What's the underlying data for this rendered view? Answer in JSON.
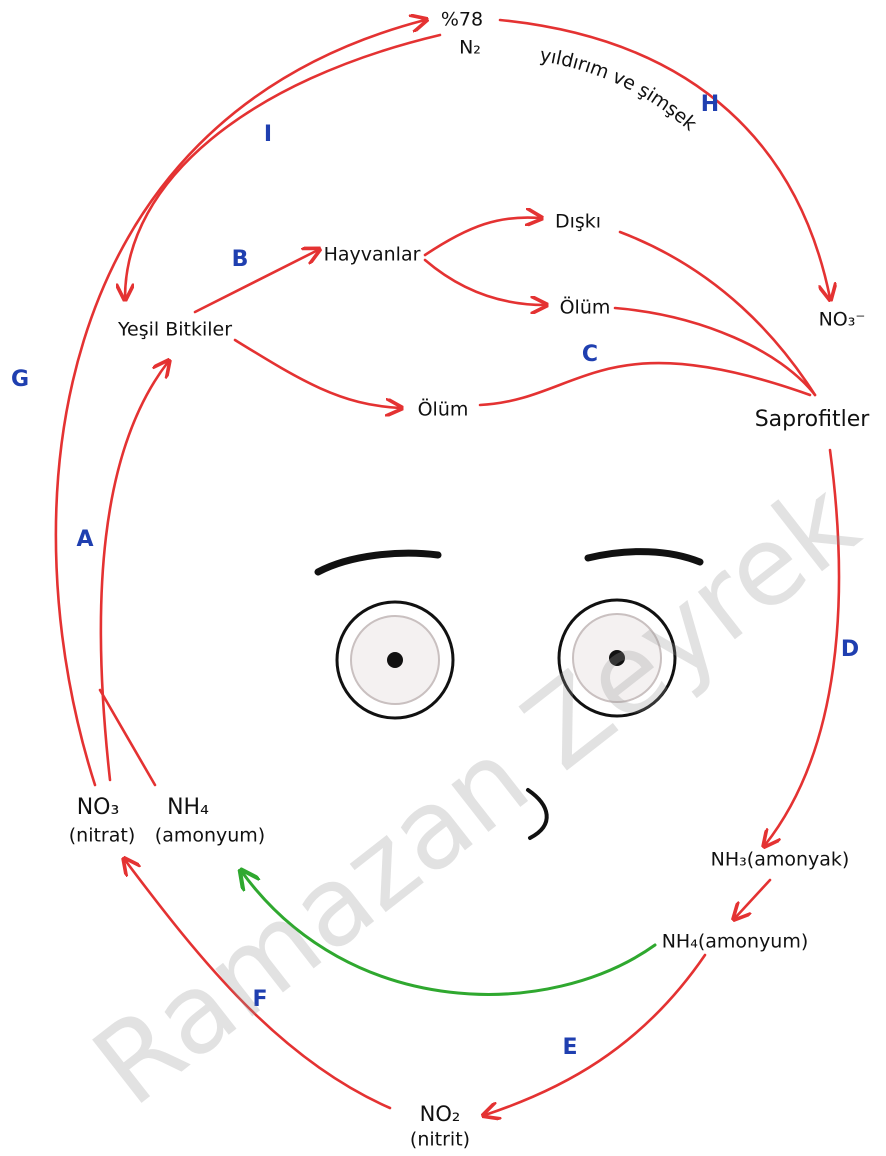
{
  "nodes": [
    {
      "label": "%78"
    },
    {
      "label": "N₂"
    },
    {
      "label": "Yeşil Bitkiler"
    },
    {
      "label": "Hayvanlar"
    },
    {
      "label": "Dışkı"
    },
    {
      "label": "Ölüm"
    },
    {
      "label": "Ölüm"
    },
    {
      "label": "NO₃⁻"
    },
    {
      "label": "Saprofitler"
    },
    {
      "label": "NO₃"
    },
    {
      "label": "(nitrat)"
    },
    {
      "label": "NH₄"
    },
    {
      "label": "(amonyum)"
    },
    {
      "label": "NH₃(amonyak)"
    },
    {
      "label": "NH₄(amonyum)"
    },
    {
      "label": "NO₂"
    },
    {
      "label": "(nitrit)"
    }
  ],
  "edge_labels": [
    "yıldırım ve şimşek",
    "H",
    "I",
    "B",
    "C",
    "G",
    "A",
    "D",
    "F",
    "E"
  ],
  "watermark": "Ramazan Zeyrek"
}
